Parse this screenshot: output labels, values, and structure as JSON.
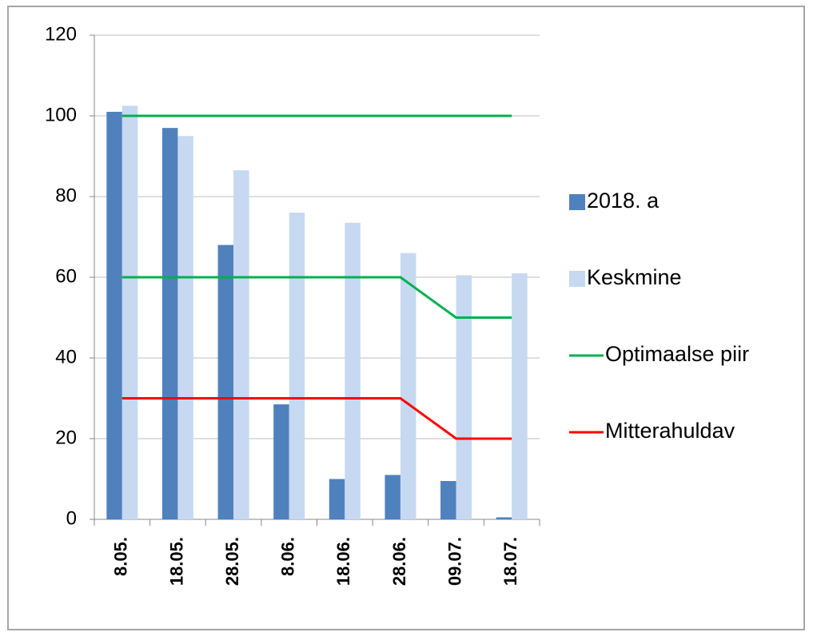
{
  "chart_data": {
    "type": "bar",
    "categories": [
      "8.05.",
      "18.05.",
      "28.05.",
      "8.06.",
      "18.06.",
      "28.06.",
      "09.07.",
      "18.07."
    ],
    "series": [
      {
        "name": "2018. a",
        "type": "bar",
        "color": "#4f81bd",
        "values": [
          101,
          97,
          68,
          28.5,
          10,
          11,
          9.5,
          0.5
        ]
      },
      {
        "name": "Keskmine",
        "type": "bar",
        "color": "#c6d9f1",
        "values": [
          102.5,
          95,
          86.5,
          76,
          73.5,
          66,
          60.5,
          61
        ]
      },
      {
        "name": "Optimaalse piir",
        "type": "line",
        "color": "#00b050",
        "values": [
          60,
          60,
          60,
          60,
          60,
          60,
          50,
          50
        ],
        "upper_values": [
          100,
          100,
          100,
          100,
          100,
          100,
          100,
          100
        ]
      },
      {
        "name": "Mitterahuldav",
        "type": "line",
        "color": "#ff0000",
        "values": [
          30,
          30,
          30,
          30,
          30,
          30,
          20,
          20
        ]
      }
    ],
    "ylim": [
      0,
      120
    ],
    "yticks": [
      0,
      20,
      40,
      60,
      80,
      100,
      120
    ],
    "grid": true,
    "legend": "right"
  }
}
